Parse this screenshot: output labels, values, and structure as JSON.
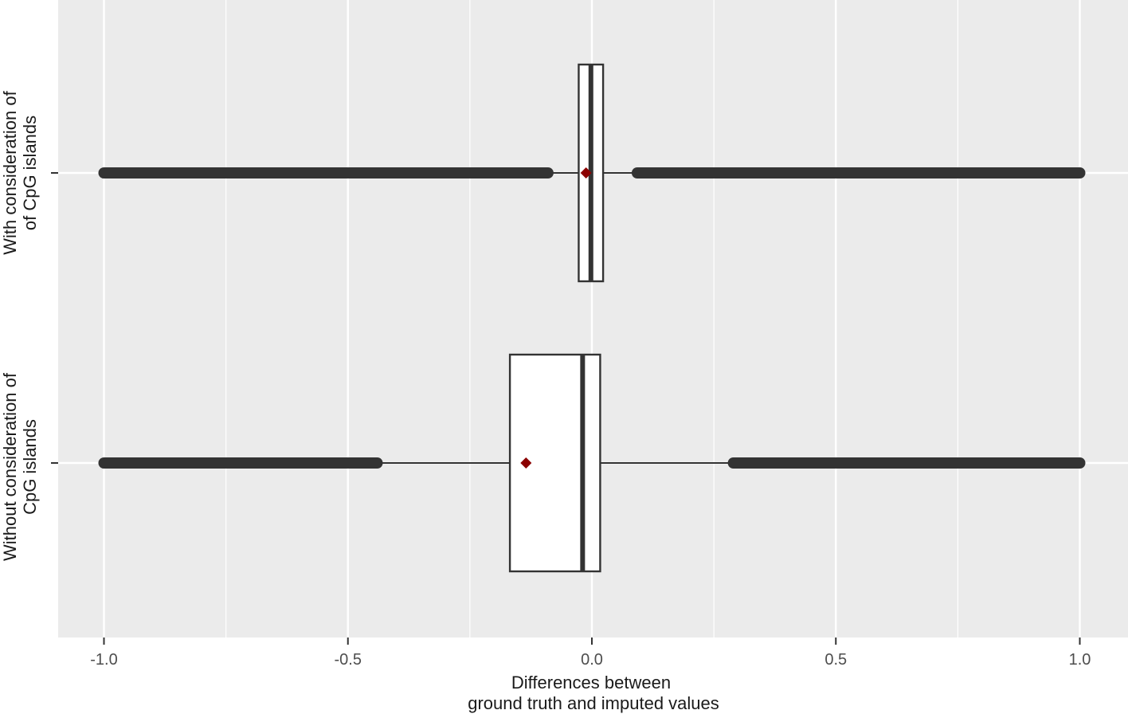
{
  "chart_data": {
    "type": "boxplot",
    "orientation": "horizontal",
    "title": "",
    "xlabel_lines": [
      "Differences between",
      "ground truth  and imputed values"
    ],
    "ylabel": "",
    "xlim": [
      -1.1,
      1.1
    ],
    "x_ticks": [
      -1.0,
      -0.5,
      0.0,
      0.5,
      1.0
    ],
    "x_tick_labels": [
      "-1.0",
      "-0.5",
      "0.0",
      "0.5",
      "1.0"
    ],
    "grid": true,
    "categories": [
      {
        "label_lines": [
          "With consideration of",
          "of CpG islands"
        ],
        "whisker_low": -0.09,
        "q1": -0.027,
        "median": -0.002,
        "q3": 0.023,
        "whisker_high": 0.093,
        "mean": -0.012,
        "outlier_ranges": [
          [
            -1.0,
            -0.09
          ],
          [
            0.093,
            1.0
          ]
        ]
      },
      {
        "label_lines": [
          "Without consideration of",
          "CpG islands"
        ],
        "whisker_low": -0.44,
        "q1": -0.168,
        "median": -0.019,
        "q3": 0.017,
        "whisker_high": 0.29,
        "mean": -0.135,
        "outlier_ranges": [
          [
            -1.0,
            -0.44
          ],
          [
            0.29,
            1.0
          ]
        ]
      }
    ],
    "colors": {
      "panel": "#ebebeb",
      "grid": "#ffffff",
      "box_fill": "#ffffff",
      "box_line": "#333333",
      "mean_marker": "#8b0000",
      "tick": "#333333"
    }
  }
}
